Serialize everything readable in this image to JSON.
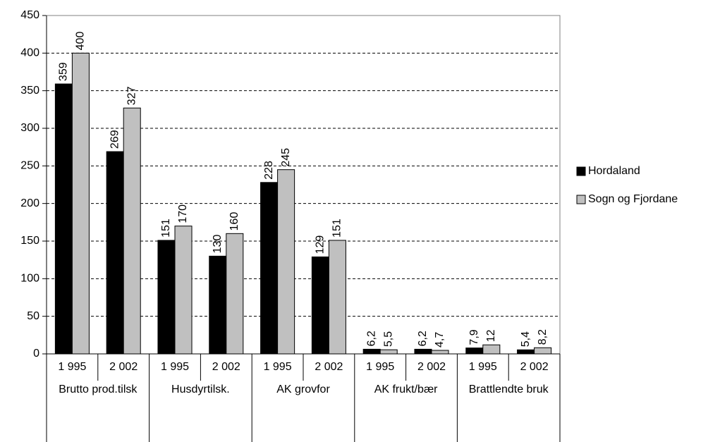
{
  "chart_data": {
    "type": "bar",
    "categories": [
      "1 995",
      "2 002",
      "1 995",
      "2 002",
      "1 995",
      "2 002",
      "1 995",
      "2 002",
      "1 995",
      "2 002"
    ],
    "groups": [
      "Brutto prod.tilsk",
      "Husdyrtilsk.",
      "AK grovfor",
      "AK frukt/bær",
      "Brattlendte bruk"
    ],
    "series": [
      {
        "name": "Hordaland",
        "color": "#000000",
        "values": [
          359,
          269,
          151,
          130,
          228,
          129,
          6.2,
          6.2,
          7.9,
          5.4
        ],
        "value_labels": [
          "359",
          "269",
          "151",
          "130",
          "228",
          "129",
          "6,2",
          "6,2",
          "7,9",
          "5,4"
        ]
      },
      {
        "name": "Sogn og Fjordane",
        "color": "#c0c0c0",
        "values": [
          400,
          327,
          170,
          160,
          245,
          151,
          5.5,
          4.7,
          12,
          8.2
        ],
        "value_labels": [
          "400",
          "327",
          "170",
          "160",
          "245",
          "151",
          "5,5",
          "4,7",
          "12",
          "8,2"
        ]
      }
    ],
    "ylim": [
      0,
      450
    ],
    "yticks": [
      0,
      50,
      100,
      150,
      200,
      250,
      300,
      350,
      400,
      450
    ],
    "grid": true,
    "legend": "right"
  }
}
